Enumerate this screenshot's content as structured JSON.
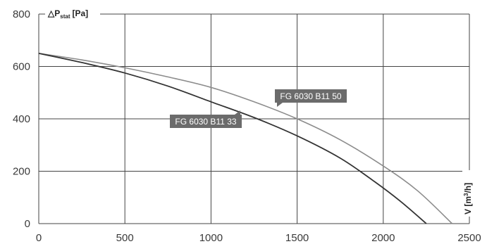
{
  "chart_data": {
    "type": "line",
    "title": "",
    "ylabel": {
      "symbol": "△",
      "main": "P",
      "sub": "stat",
      "unit": "[Pa]"
    },
    "xlabel": {
      "main": "V [m",
      "sup": "3",
      "tail": "/h]"
    },
    "xlim": [
      0,
      2500
    ],
    "ylim": [
      0,
      800
    ],
    "xticks": [
      0,
      500,
      1000,
      1500,
      2000,
      2500
    ],
    "yticks": [
      0,
      200,
      400,
      600,
      800
    ],
    "grid": true,
    "series": [
      {
        "name": "FG 6030 B11 50",
        "color": "#8c8c8c",
        "x": [
          0,
          250,
          500,
          750,
          1000,
          1250,
          1500,
          1750,
          2000,
          2200,
          2400
        ],
        "y": [
          650,
          625,
          595,
          560,
          520,
          465,
          400,
          320,
          220,
          125,
          0
        ]
      },
      {
        "name": "FG 6030 B11 33",
        "color": "#333333",
        "x": [
          0,
          250,
          500,
          750,
          1000,
          1250,
          1500,
          1750,
          1950,
          2100,
          2250
        ],
        "y": [
          650,
          615,
          575,
          525,
          465,
          405,
          335,
          250,
          160,
          85,
          0
        ]
      }
    ],
    "annotations": [
      {
        "text": "FG 6030 B11 50",
        "series": 0,
        "at_x": 1400,
        "at_y": 450
      },
      {
        "text": "FG 6030 B11 33",
        "series": 1,
        "at_x": 1200,
        "at_y": 430
      }
    ]
  }
}
